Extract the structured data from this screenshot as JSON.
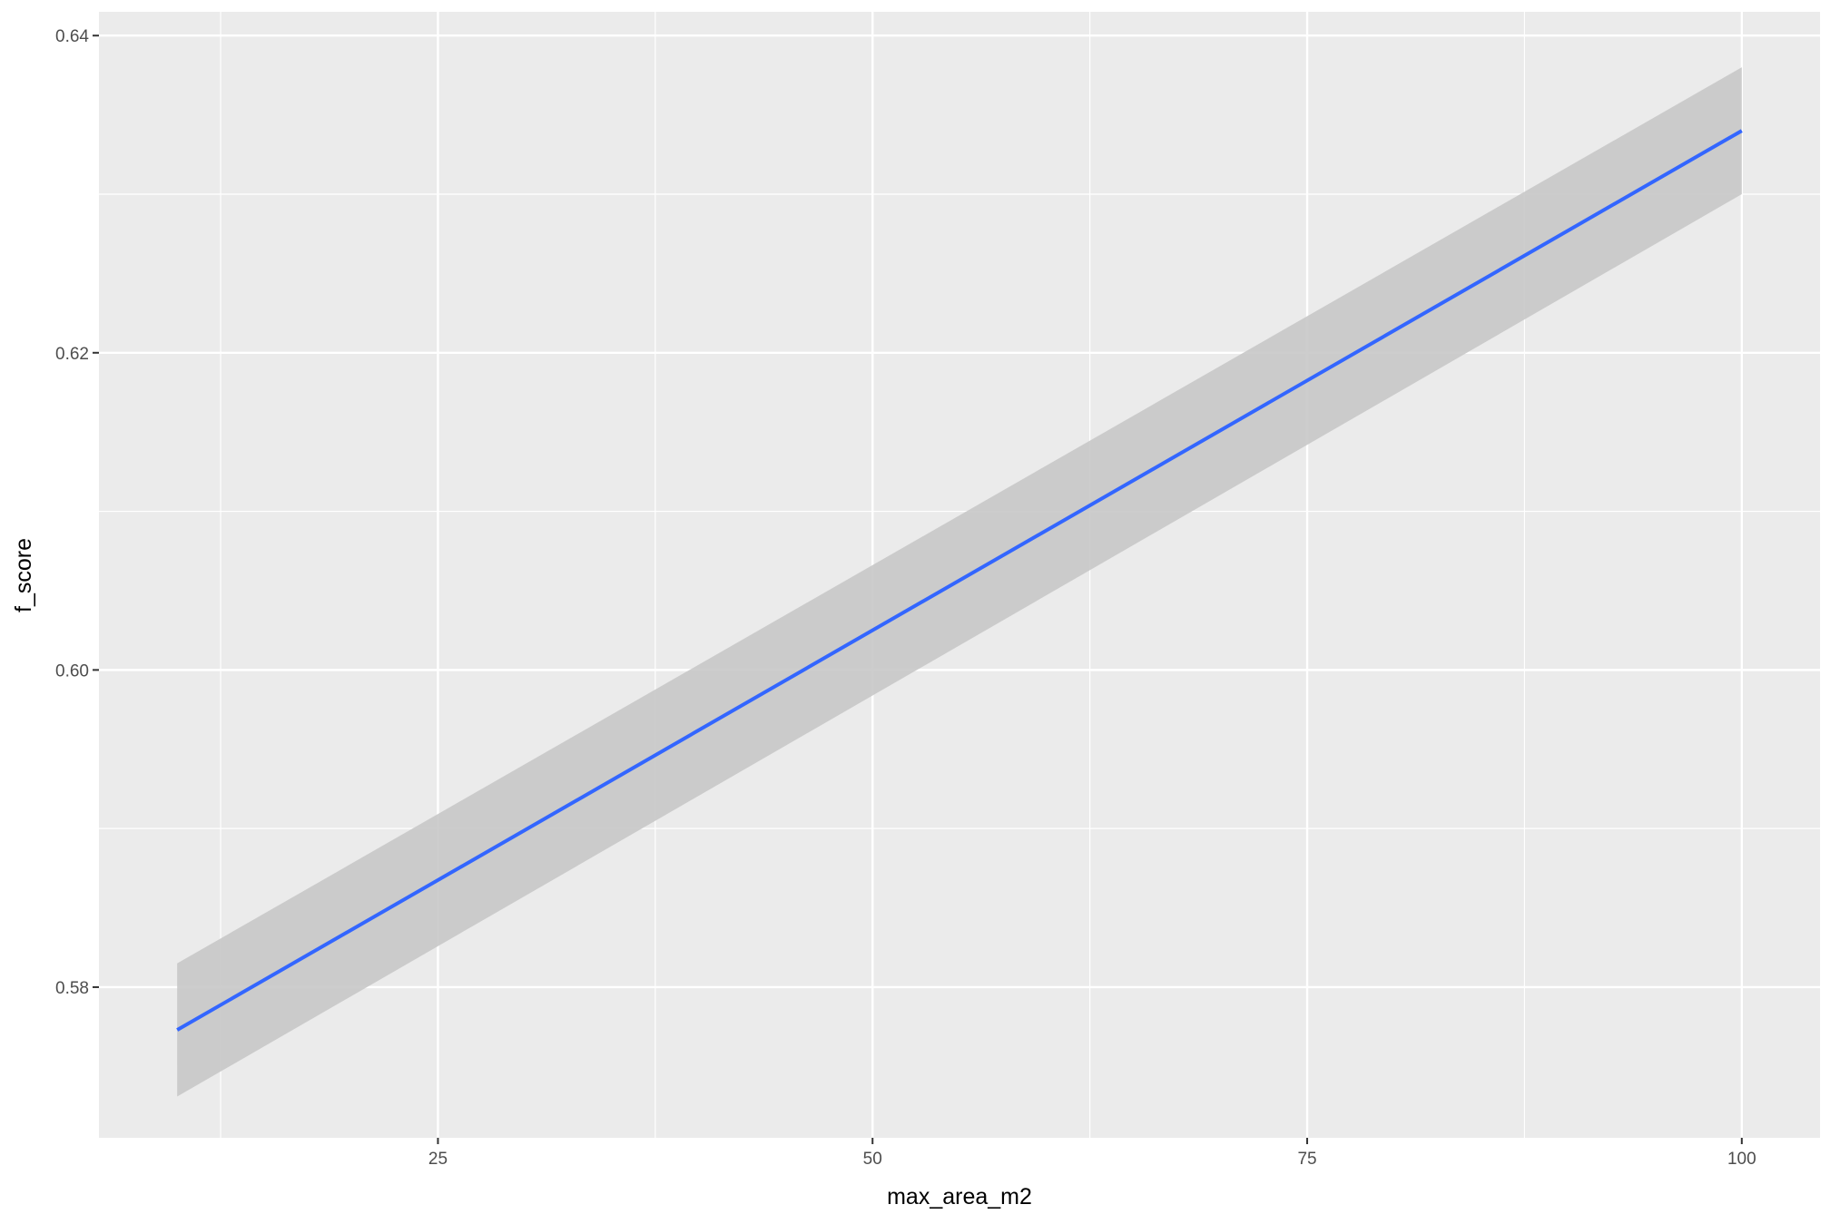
{
  "chart_data": {
    "type": "line",
    "title": "",
    "xlabel": "max_area_m2",
    "ylabel": "f_score",
    "xlim": [
      5.5,
      104.5
    ],
    "ylim": [
      0.5705,
      0.6415
    ],
    "x_ticks": [
      25,
      50,
      75,
      100
    ],
    "x_tick_labels": [
      "25",
      "50",
      "75",
      "100"
    ],
    "y_ticks": [
      0.58,
      0.6,
      0.62,
      0.64
    ],
    "y_tick_labels": [
      "0.58",
      "0.60",
      "0.62",
      "0.64"
    ],
    "grid": true,
    "legend": "none",
    "series": [
      {
        "x": [
          10,
          100
        ],
        "y": [
          0.5773,
          0.634
        ],
        "ci_lower": [
          0.5731,
          0.63
        ],
        "ci_upper": [
          0.5815,
          0.638
        ]
      }
    ],
    "colors": {
      "panel": "#EBEBEB",
      "grid": "#FFFFFF",
      "line": "#3366FF",
      "ribbon": "#C8C8C8"
    }
  }
}
